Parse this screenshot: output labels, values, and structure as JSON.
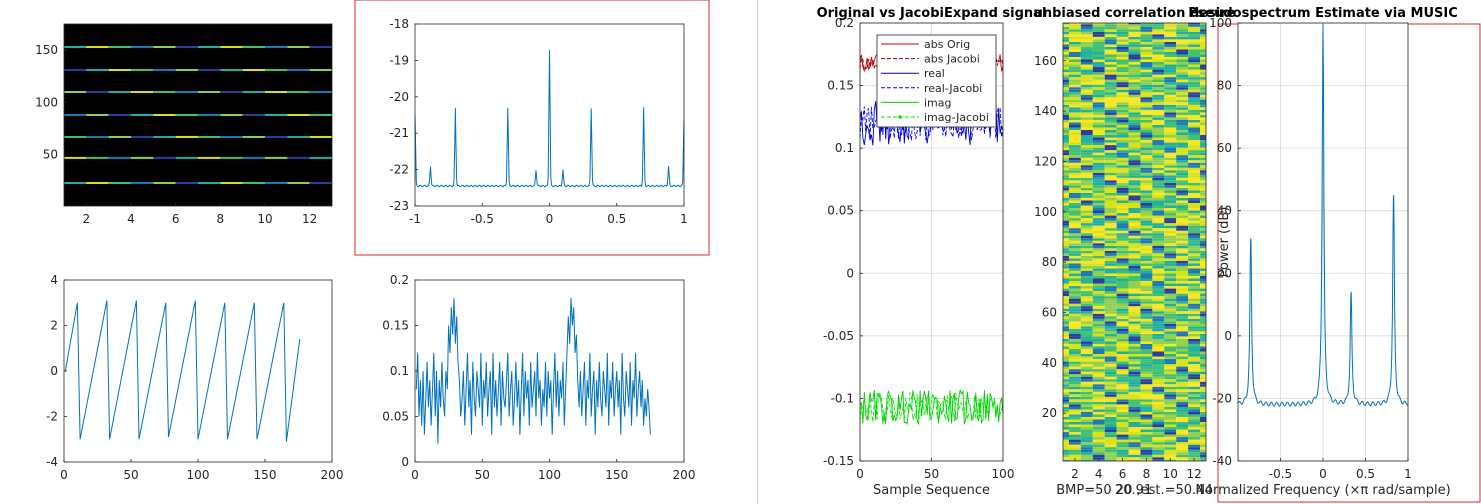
{
  "window": {
    "divider": true
  },
  "colors": {
    "axis": "#262626",
    "grid": "#dfdfdf",
    "matlab_blue": "#0072bd",
    "selection_red": "#d42b2b",
    "abs_orig": "#d40000",
    "abs_jacobi": "#8b0000",
    "real": "#0000cc",
    "real_jacobi": "#0000ff",
    "imag": "#00cc00",
    "imag_jacobi": "#00ee00",
    "image_bg": "#000000"
  },
  "chart_data": [
    {
      "id": "p1",
      "type": "heatmap",
      "title": "",
      "xlim": [
        1,
        13
      ],
      "ylim": [
        1,
        175
      ],
      "xticks": [
        2,
        4,
        6,
        8,
        10,
        12
      ],
      "yticks": [
        50,
        100,
        150
      ],
      "stripe_rows": [
        23,
        47,
        67,
        88,
        110,
        131,
        153
      ],
      "background": "black"
    },
    {
      "id": "p2",
      "type": "line",
      "title": "",
      "selected": true,
      "xlim": [
        -1,
        1
      ],
      "ylim": [
        -23,
        -18
      ],
      "xticks": [
        -1,
        -0.5,
        0,
        0.5,
        1
      ],
      "yticks": [
        -23,
        -22,
        -21,
        -20,
        -19,
        -18
      ],
      "baseline": -22.45,
      "peaks": [
        {
          "x": -1.0,
          "y": -20.5
        },
        {
          "x": -0.885,
          "y": -21.9
        },
        {
          "x": -0.7,
          "y": -20.3
        },
        {
          "x": -0.31,
          "y": -20.3
        },
        {
          "x": -0.1,
          "y": -22.0
        },
        {
          "x": 0.0,
          "y": -18.7
        },
        {
          "x": 0.1,
          "y": -22.0
        },
        {
          "x": 0.31,
          "y": -20.3
        },
        {
          "x": 0.7,
          "y": -20.3
        },
        {
          "x": 0.885,
          "y": -21.9
        },
        {
          "x": 1.0,
          "y": -20.6
        }
      ]
    },
    {
      "id": "p3",
      "type": "line",
      "title": "",
      "xlim": [
        0,
        200
      ],
      "ylim": [
        -4,
        4
      ],
      "xticks": [
        0,
        50,
        100,
        150,
        200
      ],
      "yticks": [
        -4,
        -2,
        0,
        2,
        4
      ],
      "sawtooth_points": [
        [
          1,
          0
        ],
        [
          10,
          3.0
        ],
        [
          12,
          -3.0
        ],
        [
          32,
          3.1
        ],
        [
          34,
          -3.0
        ],
        [
          54,
          3.1
        ],
        [
          56,
          -3.0
        ],
        [
          76,
          3.0
        ],
        [
          78,
          -2.9
        ],
        [
          98,
          3.1
        ],
        [
          100,
          -3.0
        ],
        [
          120,
          3.0
        ],
        [
          122,
          -3.0
        ],
        [
          142,
          3.0
        ],
        [
          144,
          -3.0
        ],
        [
          164,
          3.0
        ],
        [
          166,
          -3.1
        ],
        [
          176,
          1.4
        ]
      ]
    },
    {
      "id": "p4",
      "type": "line",
      "title": "",
      "xlim": [
        0,
        200
      ],
      "ylim": [
        0,
        0.2
      ],
      "xticks": [
        0,
        50,
        100,
        150,
        200
      ],
      "yticks": [
        0,
        0.05,
        0.1,
        0.15,
        0.2
      ],
      "values": [
        0.08,
        0.12,
        0.05,
        0.09,
        0.04,
        0.1,
        0.03,
        0.07,
        0.11,
        0.06,
        0.09,
        0.04,
        0.08,
        0.12,
        0.05,
        0.1,
        0.02,
        0.09,
        0.06,
        0.11,
        0.07,
        0.05,
        0.1,
        0.08,
        0.15,
        0.12,
        0.17,
        0.14,
        0.18,
        0.13,
        0.16,
        0.11,
        0.09,
        0.05,
        0.07,
        0.1,
        0.04,
        0.08,
        0.12,
        0.06,
        0.09,
        0.03,
        0.11,
        0.07,
        0.05,
        0.1,
        0.08,
        0.06,
        0.12,
        0.04,
        0.09,
        0.07,
        0.11,
        0.05,
        0.08,
        0.1,
        0.03,
        0.12,
        0.06,
        0.09,
        0.05,
        0.08,
        0.11,
        0.04,
        0.1,
        0.07,
        0.06,
        0.09,
        0.12,
        0.05,
        0.08,
        0.1,
        0.04,
        0.07,
        0.11,
        0.06,
        0.09,
        0.03,
        0.08,
        0.12,
        0.05,
        0.1,
        0.07,
        0.09,
        0.04,
        0.11,
        0.06,
        0.08,
        0.1,
        0.05,
        0.12,
        0.07,
        0.09,
        0.04,
        0.08,
        0.06,
        0.11,
        0.05,
        0.1,
        0.07,
        0.09,
        0.03,
        0.08,
        0.12,
        0.06,
        0.1,
        0.05,
        0.09,
        0.07,
        0.11,
        0.04,
        0.08,
        0.12,
        0.16,
        0.13,
        0.18,
        0.15,
        0.17,
        0.12,
        0.14,
        0.09,
        0.06,
        0.1,
        0.05,
        0.08,
        0.11,
        0.04,
        0.09,
        0.07,
        0.12,
        0.05,
        0.08,
        0.1,
        0.03,
        0.09,
        0.06,
        0.11,
        0.07,
        0.05,
        0.1,
        0.08,
        0.06,
        0.12,
        0.04,
        0.09,
        0.07,
        0.11,
        0.05,
        0.08,
        0.1,
        0.06,
        0.09,
        0.03,
        0.12,
        0.07,
        0.05,
        0.1,
        0.08,
        0.06,
        0.11,
        0.04,
        0.09,
        0.07,
        0.12,
        0.05,
        0.08,
        0.1,
        0.06,
        0.09,
        0.04,
        0.07,
        0.05,
        0.08,
        0.06,
        0.03
      ]
    },
    {
      "id": "p5",
      "type": "line",
      "title": "Original vs JacobiExpand signal",
      "xlabel": "Sample Sequence",
      "xlim": [
        0,
        100
      ],
      "ylim": [
        -0.15,
        0.2
      ],
      "xticks": [
        0,
        50,
        100
      ],
      "yticks": [
        -0.15,
        -0.1,
        -0.05,
        0,
        0.05,
        0.1,
        0.15,
        0.2
      ],
      "grid": true,
      "legend_placement": "top-right",
      "series": [
        {
          "name": "abs Orig",
          "center": 0.168,
          "spread": 0.008,
          "style": "solid",
          "colorKey": "abs_orig"
        },
        {
          "name": "abs Jacobi",
          "center": 0.168,
          "spread": 0.006,
          "style": "dashed",
          "colorKey": "abs_jacobi"
        },
        {
          "name": "real",
          "center": 0.12,
          "spread": 0.018,
          "style": "solid",
          "colorKey": "real"
        },
        {
          "name": "real-Jacobi",
          "center": 0.12,
          "spread": 0.014,
          "style": "dashed",
          "colorKey": "real_jacobi"
        },
        {
          "name": "imag",
          "center": -0.107,
          "spread": 0.014,
          "style": "solid",
          "colorKey": "imag"
        },
        {
          "name": "imag-Jacobi",
          "center": -0.107,
          "spread": 0.012,
          "style": "dashed-marker",
          "colorKey": "imag_jacobi"
        }
      ]
    },
    {
      "id": "p6",
      "type": "heatmap",
      "title": "unbiased correlation  desire",
      "xlabel": "BMP=50  20 ,est.=50.44",
      "xlim": [
        1,
        13
      ],
      "ylim": [
        1,
        175
      ],
      "xticks": [
        2,
        4,
        6,
        8,
        10,
        12
      ],
      "yticks": [
        20,
        40,
        60,
        80,
        100,
        120,
        140,
        160
      ],
      "palette": [
        "#2c3e9c",
        "#1f77b4",
        "#20b0a0",
        "#40c070",
        "#8fd14f",
        "#d8e219",
        "#f8e621"
      ]
    },
    {
      "id": "p7",
      "type": "line",
      "title": "Pseudospectrum Estimate via MUSIC",
      "xlabel": "Normalized Frequency  (×π rad/sample)",
      "ylabel": "Power (dB)",
      "xlim": [
        -1,
        1
      ],
      "ylim": [
        -40,
        100
      ],
      "xticks": [
        -0.5,
        0,
        0.5,
        1
      ],
      "yticks": [
        -40,
        -20,
        0,
        20,
        40,
        60,
        80,
        100
      ],
      "grid": true,
      "selected": true,
      "baseline": -22,
      "peaks": [
        {
          "x": -0.85,
          "y": 32
        },
        {
          "x": 0.0,
          "y": 100
        },
        {
          "x": 0.33,
          "y": 14
        },
        {
          "x": 0.83,
          "y": 46
        }
      ]
    }
  ],
  "labels": {
    "overlap_text": "20.91"
  }
}
